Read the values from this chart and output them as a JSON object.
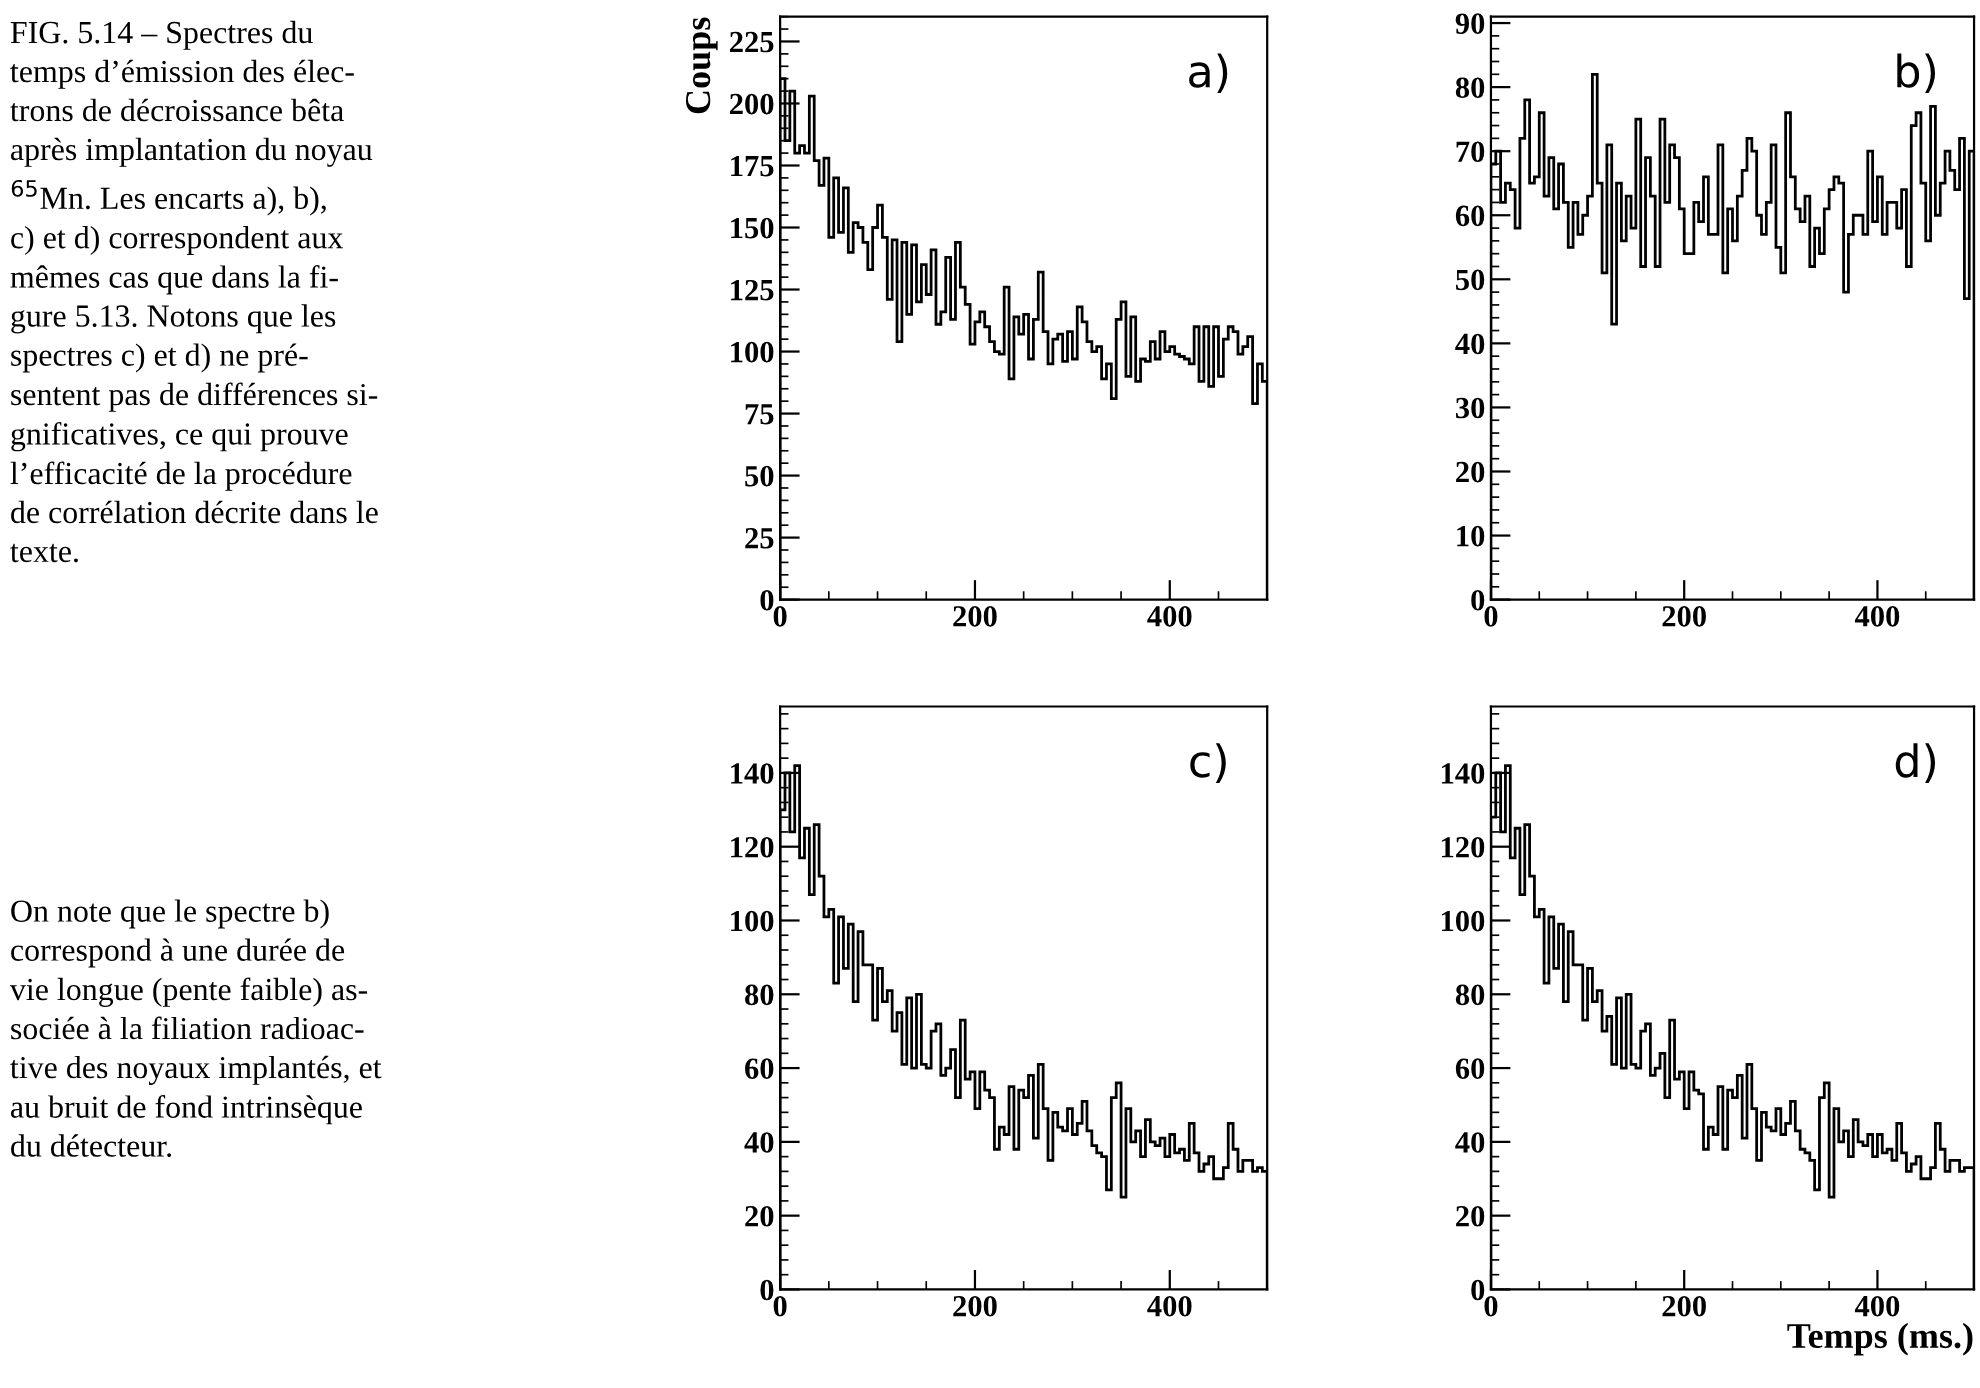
{
  "chart_data": [
    {
      "type": "other",
      "annotations": [
        "FIG. 5.14 – Spectres du\ntemps d’émission des élec-\ntrons de décroissance bêta\naprès implantation du noyau\n$^{65}$Mn. Les encarts a), b),\nc) et d) correspondent aux\nmêmes cas que dans la fi-\ngure 5.13. Notons que les\nspectres c) et d) ne pré-\nsentent pas de différences si-\ngnificatives, ce qui prouve\nl’efficacité de la procédure\nde corrélation décrite dans le\ntexte.",
        "On note que le spectre b)\ncorrespond à une durée de\nvie longue (pente faible) as-\nsociée à la filiation radioac-\ntive des noyaux implantés, et\nau bruit de fond intrinsèque\ndu détecteur."
      ]
    },
    {
      "type": "histogram",
      "ylabel": "Coups",
      "annotations": [
        "a)"
      ],
      "xlim": [
        0,
        500
      ],
      "xticks": [
        0,
        200,
        400
      ],
      "ylim": [
        0,
        235
      ],
      "yticks": [
        0,
        25,
        50,
        75,
        100,
        125,
        150,
        175,
        200,
        225
      ],
      "color": "#000000",
      "bins": [
        0,
        5,
        10,
        15,
        20,
        25,
        30,
        35,
        40,
        45,
        50,
        55,
        60,
        65,
        70,
        75,
        80,
        85,
        90,
        95,
        100,
        105,
        110,
        115,
        120,
        125,
        130,
        135,
        140,
        145,
        150,
        155,
        160,
        165,
        170,
        175,
        180,
        185,
        190,
        195,
        200,
        205,
        210,
        215,
        220,
        225,
        230,
        235,
        240,
        245,
        250,
        255,
        260,
        265,
        270,
        275,
        280,
        285,
        290,
        295,
        300,
        305,
        310,
        315,
        320,
        325,
        330,
        335,
        340,
        345,
        350,
        355,
        360,
        365,
        370,
        375,
        380,
        385,
        390,
        395,
        400,
        405,
        410,
        415,
        420,
        425,
        430,
        435,
        440,
        445,
        450,
        455,
        460,
        465,
        470,
        475,
        480,
        485,
        490,
        495,
        500
      ],
      "values": [
        210,
        185,
        205,
        180,
        183,
        180,
        203,
        177,
        167,
        178,
        146,
        170,
        148,
        166,
        140,
        152,
        150,
        144,
        133,
        150,
        159,
        146,
        121,
        145,
        104,
        144,
        115,
        143,
        120,
        135,
        123,
        141,
        111,
        116,
        138,
        113,
        144,
        126,
        119,
        103,
        112,
        116,
        110,
        104,
        100,
        99,
        126,
        89,
        114,
        107,
        115,
        97,
        113,
        132,
        108,
        95,
        105,
        107,
        96,
        108,
        97,
        118,
        112,
        104,
        100,
        102,
        89,
        95,
        81,
        113,
        120,
        90,
        114,
        88,
        97,
        96,
        104,
        97,
        108,
        100,
        102,
        99,
        98,
        97,
        95,
        110,
        88,
        110,
        86,
        110,
        90,
        105,
        110,
        108,
        99,
        102,
        106,
        79,
        95,
        88
      ]
    },
    {
      "type": "histogram",
      "annotations": [
        "b)"
      ],
      "xlim": [
        0,
        500
      ],
      "xticks": [
        0,
        200,
        400
      ],
      "ylim": [
        0,
        91
      ],
      "yticks": [
        0,
        10,
        20,
        30,
        40,
        50,
        60,
        70,
        80,
        90
      ],
      "color": "#000000",
      "bins": [
        0,
        5,
        10,
        15,
        20,
        25,
        30,
        35,
        40,
        45,
        50,
        55,
        60,
        65,
        70,
        75,
        80,
        85,
        90,
        95,
        100,
        105,
        110,
        115,
        120,
        125,
        130,
        135,
        140,
        145,
        150,
        155,
        160,
        165,
        170,
        175,
        180,
        185,
        190,
        195,
        200,
        205,
        210,
        215,
        220,
        225,
        230,
        235,
        240,
        245,
        250,
        255,
        260,
        265,
        270,
        275,
        280,
        285,
        290,
        295,
        300,
        305,
        310,
        315,
        320,
        325,
        330,
        335,
        340,
        345,
        350,
        355,
        360,
        365,
        370,
        375,
        380,
        385,
        390,
        395,
        400,
        405,
        410,
        415,
        420,
        425,
        430,
        435,
        440,
        445,
        450,
        455,
        460,
        465,
        470,
        475,
        480,
        485,
        490,
        495,
        500
      ],
      "values": [
        68,
        70,
        62,
        65,
        64,
        58,
        72,
        78,
        65,
        66,
        76,
        63,
        69,
        61,
        68,
        62,
        55,
        62,
        57,
        60,
        63,
        82,
        65,
        51,
        71,
        43,
        65,
        56,
        63,
        58,
        75,
        52,
        69,
        63,
        52,
        75,
        62,
        71,
        69,
        61,
        54,
        54,
        62,
        59,
        66,
        57,
        57,
        71,
        51,
        61,
        56,
        63,
        67,
        72,
        70,
        60,
        57,
        62,
        71,
        55,
        51,
        76,
        66,
        61,
        59,
        63,
        52,
        58,
        54,
        61,
        64,
        66,
        65,
        48,
        57,
        60,
        60,
        57,
        70,
        59,
        66,
        57,
        62,
        62,
        58,
        64,
        52,
        74,
        76,
        65,
        56,
        77,
        60,
        65,
        70,
        67,
        64,
        72,
        47,
        70
      ]
    },
    {
      "type": "histogram",
      "annotations": [
        "c)"
      ],
      "xlim": [
        0,
        500
      ],
      "xticks": [
        0,
        200,
        400
      ],
      "ylim": [
        0,
        158
      ],
      "yticks": [
        0,
        20,
        40,
        60,
        80,
        100,
        120,
        140
      ],
      "color": "#000000",
      "bins": [
        0,
        5,
        10,
        15,
        20,
        25,
        30,
        35,
        40,
        45,
        50,
        55,
        60,
        65,
        70,
        75,
        80,
        85,
        90,
        95,
        100,
        105,
        110,
        115,
        120,
        125,
        130,
        135,
        140,
        145,
        150,
        155,
        160,
        165,
        170,
        175,
        180,
        185,
        190,
        195,
        200,
        205,
        210,
        215,
        220,
        225,
        230,
        235,
        240,
        245,
        250,
        255,
        260,
        265,
        270,
        275,
        280,
        285,
        290,
        295,
        300,
        305,
        310,
        315,
        320,
        325,
        330,
        335,
        340,
        345,
        350,
        355,
        360,
        365,
        370,
        375,
        380,
        385,
        390,
        395,
        400,
        405,
        410,
        415,
        420,
        425,
        430,
        435,
        440,
        445,
        450,
        455,
        460,
        465,
        470,
        475,
        480,
        485,
        490,
        495,
        500
      ],
      "values": [
        130,
        140,
        124,
        142,
        117,
        125,
        107,
        126,
        112,
        101,
        103,
        83,
        101,
        87,
        99,
        78,
        97,
        88,
        88,
        73,
        87,
        78,
        81,
        70,
        75,
        61,
        79,
        60,
        80,
        61,
        60,
        70,
        72,
        58,
        60,
        65,
        52,
        73,
        57,
        59,
        49,
        59,
        54,
        52,
        38,
        44,
        42,
        55,
        38,
        54,
        52,
        58,
        41,
        61,
        49,
        35,
        48,
        44,
        43,
        49,
        42,
        45,
        51,
        43,
        39,
        37,
        36,
        27,
        52,
        56,
        25,
        49,
        40,
        43,
        36,
        46,
        40,
        39,
        41,
        36,
        42,
        37,
        38,
        35,
        45,
        37,
        32,
        34,
        36,
        30,
        30,
        33,
        45,
        38,
        32,
        35,
        35,
        32,
        33,
        32
      ]
    },
    {
      "type": "histogram",
      "xlabel": "Temps (ms.)",
      "annotations": [
        "d)"
      ],
      "xlim": [
        0,
        500
      ],
      "xticks": [
        0,
        200,
        400
      ],
      "ylim": [
        0,
        158
      ],
      "yticks": [
        0,
        20,
        40,
        60,
        80,
        100,
        120,
        140
      ],
      "color": "#000000",
      "bins": [
        0,
        5,
        10,
        15,
        20,
        25,
        30,
        35,
        40,
        45,
        50,
        55,
        60,
        65,
        70,
        75,
        80,
        85,
        90,
        95,
        100,
        105,
        110,
        115,
        120,
        125,
        130,
        135,
        140,
        145,
        150,
        155,
        160,
        165,
        170,
        175,
        180,
        185,
        190,
        195,
        200,
        205,
        210,
        215,
        220,
        225,
        230,
        235,
        240,
        245,
        250,
        255,
        260,
        265,
        270,
        275,
        280,
        285,
        290,
        295,
        300,
        305,
        310,
        315,
        320,
        325,
        330,
        335,
        340,
        345,
        350,
        355,
        360,
        365,
        370,
        375,
        380,
        385,
        390,
        395,
        400,
        405,
        410,
        415,
        420,
        425,
        430,
        435,
        440,
        445,
        450,
        455,
        460,
        465,
        470,
        475,
        480,
        485,
        490,
        495,
        500
      ],
      "values": [
        128,
        140,
        124,
        142,
        117,
        125,
        107,
        126,
        112,
        101,
        103,
        83,
        101,
        87,
        99,
        78,
        97,
        88,
        88,
        73,
        87,
        78,
        81,
        70,
        74,
        61,
        79,
        60,
        80,
        61,
        60,
        70,
        72,
        58,
        60,
        64,
        52,
        73,
        57,
        59,
        49,
        59,
        54,
        53,
        38,
        44,
        42,
        55,
        38,
        54,
        52,
        58,
        41,
        61,
        49,
        35,
        48,
        44,
        43,
        49,
        42,
        45,
        51,
        43,
        38,
        37,
        35,
        27,
        52,
        56,
        25,
        49,
        40,
        43,
        36,
        46,
        40,
        39,
        42,
        36,
        42,
        37,
        38,
        35,
        45,
        37,
        32,
        34,
        36,
        30,
        30,
        33,
        45,
        38,
        32,
        35,
        35,
        32,
        33,
        33
      ]
    }
  ]
}
